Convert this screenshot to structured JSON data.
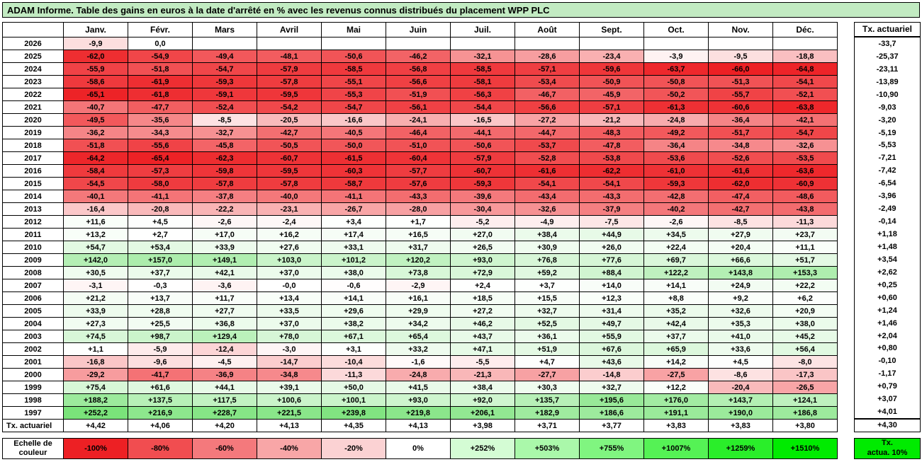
{
  "title": "ADAM Informe. Table des gains en euros à la date d'arrêté en % avec les revenus connus distribués du placement WPP PLC",
  "colors": {
    "title_bg": "#c2ebc2",
    "cell_bg_default": "#ffffff",
    "border": "#000000",
    "legend_right_bg": "#00eb00"
  },
  "scale": {
    "table_neg_cap": 66,
    "table_pos_cap": 260,
    "legend_neg_cap": 100,
    "legend_pos_cap": 1510,
    "neg_color": [
      237,
      32,
      36
    ],
    "table_pos_color": [
      118,
      226,
      118
    ],
    "legend_pos_color": [
      0,
      235,
      0
    ]
  },
  "table": {
    "corner_label": "",
    "months": [
      "Janv.",
      "Févr.",
      "Mars",
      "Avril",
      "Mai",
      "Juin",
      "Juil.",
      "Août",
      "Sept.",
      "Oct.",
      "Nov.",
      "Déc."
    ],
    "rows": [
      {
        "year": "2026",
        "values": [
          "-9,9",
          "0,0",
          "",
          "",
          "",
          "",
          "",
          "",
          "",
          "",
          "",
          ""
        ],
        "tx": "-33,7"
      },
      {
        "year": "2025",
        "values": [
          "-62,0",
          "-54,9",
          "-49,4",
          "-48,1",
          "-50,6",
          "-46,2",
          "-32,1",
          "-28,6",
          "-23,4",
          "-3,9",
          "-9,5",
          "-18,8"
        ],
        "tx": "-25,37"
      },
      {
        "year": "2024",
        "values": [
          "-55,9",
          "-51,8",
          "-54,7",
          "-57,9",
          "-58,5",
          "-56,8",
          "-58,5",
          "-57,1",
          "-59,6",
          "-63,7",
          "-66,0",
          "-64,8"
        ],
        "tx": "-23,11"
      },
      {
        "year": "2023",
        "values": [
          "-58,6",
          "-61,9",
          "-59,3",
          "-57,8",
          "-55,1",
          "-56,6",
          "-58,1",
          "-53,4",
          "-50,9",
          "-50,8",
          "-51,3",
          "-54,1"
        ],
        "tx": "-13,89"
      },
      {
        "year": "2022",
        "values": [
          "-65,1",
          "-61,8",
          "-59,1",
          "-59,5",
          "-55,3",
          "-51,9",
          "-56,3",
          "-46,7",
          "-45,9",
          "-50,2",
          "-55,7",
          "-52,1"
        ],
        "tx": "-10,90"
      },
      {
        "year": "2021",
        "values": [
          "-40,7",
          "-47,7",
          "-52,4",
          "-54,2",
          "-54,7",
          "-56,1",
          "-54,4",
          "-56,6",
          "-57,1",
          "-61,3",
          "-60,6",
          "-63,8"
        ],
        "tx": "-9,03"
      },
      {
        "year": "2020",
        "values": [
          "-49,5",
          "-35,6",
          "-8,5",
          "-20,5",
          "-16,6",
          "-24,1",
          "-16,5",
          "-27,2",
          "-21,2",
          "-24,8",
          "-36,4",
          "-42,1"
        ],
        "tx": "-3,20"
      },
      {
        "year": "2019",
        "values": [
          "-36,2",
          "-34,3",
          "-32,7",
          "-42,7",
          "-40,5",
          "-46,4",
          "-44,1",
          "-44,7",
          "-48,3",
          "-49,2",
          "-51,7",
          "-54,7"
        ],
        "tx": "-5,19"
      },
      {
        "year": "2018",
        "values": [
          "-51,8",
          "-55,6",
          "-45,8",
          "-50,5",
          "-50,0",
          "-51,0",
          "-50,6",
          "-53,7",
          "-47,8",
          "-36,4",
          "-34,8",
          "-32,6"
        ],
        "tx": "-5,53"
      },
      {
        "year": "2017",
        "values": [
          "-64,2",
          "-65,4",
          "-62,3",
          "-60,7",
          "-61,5",
          "-60,4",
          "-57,9",
          "-52,8",
          "-53,8",
          "-53,6",
          "-52,6",
          "-53,5"
        ],
        "tx": "-7,21"
      },
      {
        "year": "2016",
        "values": [
          "-58,4",
          "-57,3",
          "-59,8",
          "-59,5",
          "-60,3",
          "-57,7",
          "-60,7",
          "-61,6",
          "-62,2",
          "-61,0",
          "-61,6",
          "-63,6"
        ],
        "tx": "-7,42"
      },
      {
        "year": "2015",
        "values": [
          "-54,5",
          "-58,0",
          "-57,8",
          "-57,8",
          "-58,7",
          "-57,6",
          "-59,3",
          "-54,1",
          "-54,1",
          "-59,3",
          "-62,0",
          "-60,9"
        ],
        "tx": "-6,54"
      },
      {
        "year": "2014",
        "values": [
          "-40,1",
          "-41,1",
          "-37,8",
          "-40,0",
          "-41,1",
          "-43,3",
          "-39,6",
          "-43,4",
          "-43,3",
          "-42,8",
          "-47,4",
          "-48,6"
        ],
        "tx": "-3,96"
      },
      {
        "year": "2013",
        "values": [
          "-16,4",
          "-20,8",
          "-22,2",
          "-23,1",
          "-26,7",
          "-28,0",
          "-30,4",
          "-32,6",
          "-37,9",
          "-40,2",
          "-42,7",
          "-43,8"
        ],
        "tx": "-2,49"
      },
      {
        "year": "2012",
        "values": [
          "+11,6",
          "+4,5",
          "-2,6",
          "-2,4",
          "+3,4",
          "+1,7",
          "-5,2",
          "-4,9",
          "-7,5",
          "-2,6",
          "-8,5",
          "-11,3"
        ],
        "tx": "-0,14"
      },
      {
        "year": "2011",
        "values": [
          "+13,2",
          "+2,7",
          "+17,0",
          "+16,2",
          "+17,4",
          "+16,5",
          "+27,0",
          "+38,4",
          "+44,9",
          "+34,5",
          "+27,9",
          "+23,7"
        ],
        "tx": "+1,18"
      },
      {
        "year": "2010",
        "values": [
          "+54,7",
          "+53,4",
          "+33,9",
          "+27,6",
          "+33,1",
          "+31,7",
          "+26,5",
          "+30,9",
          "+26,0",
          "+22,4",
          "+20,4",
          "+11,1"
        ],
        "tx": "+1,48"
      },
      {
        "year": "2009",
        "values": [
          "+142,0",
          "+157,0",
          "+149,1",
          "+103,0",
          "+101,2",
          "+120,2",
          "+93,0",
          "+76,8",
          "+77,6",
          "+69,7",
          "+66,6",
          "+51,7"
        ],
        "tx": "+3,54"
      },
      {
        "year": "2008",
        "values": [
          "+30,5",
          "+37,7",
          "+42,1",
          "+37,0",
          "+38,0",
          "+73,8",
          "+72,9",
          "+59,2",
          "+88,4",
          "+122,2",
          "+143,8",
          "+153,3"
        ],
        "tx": "+2,62"
      },
      {
        "year": "2007",
        "values": [
          "-3,1",
          "-0,3",
          "-3,6",
          "-0,0",
          "-0,6",
          "-2,9",
          "+2,4",
          "+3,7",
          "+14,0",
          "+14,1",
          "+24,9",
          "+22,2"
        ],
        "tx": "+0,25"
      },
      {
        "year": "2006",
        "values": [
          "+21,2",
          "+13,7",
          "+11,7",
          "+13,4",
          "+14,1",
          "+16,1",
          "+18,5",
          "+15,5",
          "+12,3",
          "+8,8",
          "+9,2",
          "+6,2"
        ],
        "tx": "+0,60"
      },
      {
        "year": "2005",
        "values": [
          "+33,9",
          "+28,8",
          "+27,7",
          "+33,5",
          "+29,6",
          "+29,9",
          "+27,2",
          "+32,7",
          "+31,4",
          "+35,2",
          "+32,6",
          "+20,9"
        ],
        "tx": "+1,24"
      },
      {
        "year": "2004",
        "values": [
          "+27,3",
          "+25,5",
          "+36,8",
          "+37,0",
          "+38,2",
          "+34,2",
          "+46,2",
          "+52,5",
          "+49,7",
          "+42,4",
          "+35,3",
          "+38,0"
        ],
        "tx": "+1,46"
      },
      {
        "year": "2003",
        "values": [
          "+74,5",
          "+98,7",
          "+129,4",
          "+78,0",
          "+67,1",
          "+65,4",
          "+43,7",
          "+36,1",
          "+55,9",
          "+37,7",
          "+41,0",
          "+45,2"
        ],
        "tx": "+2,04"
      },
      {
        "year": "2002",
        "values": [
          "+1,1",
          "-5,9",
          "-12,4",
          "-3,0",
          "+3,1",
          "+33,2",
          "+47,1",
          "+51,9",
          "+67,6",
          "+65,9",
          "+33,6",
          "+56,4"
        ],
        "tx": "+0,80"
      },
      {
        "year": "2001",
        "values": [
          "-16,8",
          "-9,6",
          "-4,5",
          "-14,7",
          "-10,4",
          "-1,6",
          "-5,5",
          "+4,7",
          "+43,6",
          "+14,2",
          "+4,5",
          "-8,0"
        ],
        "tx": "-0,10"
      },
      {
        "year": "2000",
        "values": [
          "-29,2",
          "-41,7",
          "-36,9",
          "-34,8",
          "-11,3",
          "-24,8",
          "-21,3",
          "-27,7",
          "-14,8",
          "-27,5",
          "-8,6",
          "-17,3"
        ],
        "tx": "-1,17"
      },
      {
        "year": "1999",
        "values": [
          "+75,4",
          "+61,6",
          "+44,1",
          "+39,1",
          "+50,0",
          "+41,5",
          "+38,4",
          "+30,3",
          "+32,7",
          "+12,2",
          "-20,4",
          "-26,5"
        ],
        "tx": "+0,79"
      },
      {
        "year": "1998",
        "values": [
          "+188,2",
          "+137,5",
          "+117,5",
          "+100,6",
          "+100,1",
          "+93,0",
          "+92,0",
          "+135,7",
          "+195,6",
          "+176,0",
          "+143,7",
          "+124,1"
        ],
        "tx": "+3,07"
      },
      {
        "year": "1997",
        "values": [
          "+252,2",
          "+216,9",
          "+228,7",
          "+221,5",
          "+239,8",
          "+219,8",
          "+206,1",
          "+182,9",
          "+186,6",
          "+191,1",
          "+190,0",
          "+186,8"
        ],
        "tx": "+4,01"
      }
    ],
    "tx_row": {
      "label": "Tx. actuariel",
      "values": [
        "+4,42",
        "+4,06",
        "+4,20",
        "+4,13",
        "+4,35",
        "+4,13",
        "+3,98",
        "+3,71",
        "+3,77",
        "+3,83",
        "+3,83",
        "+3,80"
      ]
    }
  },
  "right_column": {
    "header": "Tx. actuariel",
    "bottom_value": "+4,30"
  },
  "legend": {
    "label_line1": "Echelle de",
    "label_line2": "couleur",
    "items": [
      {
        "label": "-100%",
        "value": -100
      },
      {
        "label": "-80%",
        "value": -80
      },
      {
        "label": "-60%",
        "value": -60
      },
      {
        "label": "-40%",
        "value": -40
      },
      {
        "label": "-20%",
        "value": -20
      },
      {
        "label": "0%",
        "value": 0
      },
      {
        "label": "+252%",
        "value": 252
      },
      {
        "label": "+503%",
        "value": 503
      },
      {
        "label": "+755%",
        "value": 755
      },
      {
        "label": "+1007%",
        "value": 1007
      },
      {
        "label": "+1259%",
        "value": 1259
      },
      {
        "label": "+1510%",
        "value": 1510
      }
    ],
    "right_box_line1": "Tx.",
    "right_box_line2": "actua. 10%"
  }
}
